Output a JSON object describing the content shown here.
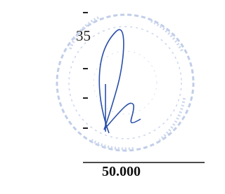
{
  "page_number": "35",
  "amount": "50.000"
}
